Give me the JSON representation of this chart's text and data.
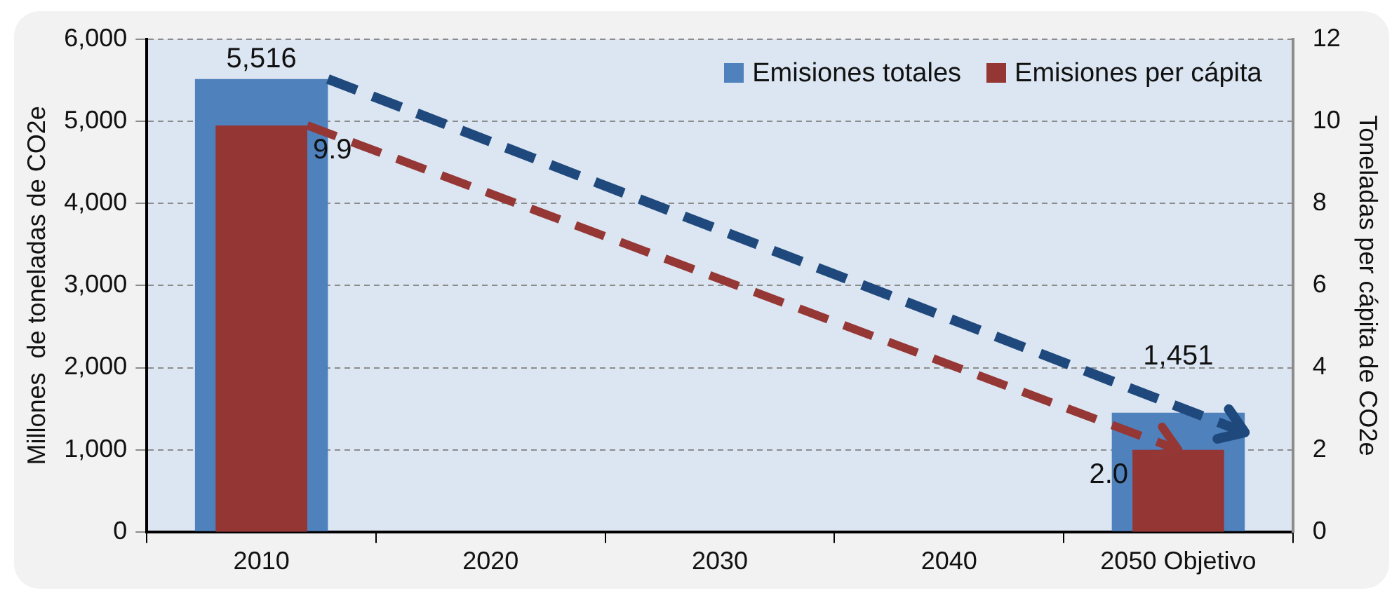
{
  "chart_data": {
    "type": "bar",
    "categories": [
      "2010",
      "2020",
      "2030",
      "2040",
      "2050 Objetivo"
    ],
    "ylabel": "Millones  de toneladas de CO2e",
    "y2label": "Toneladas per cápita de CO2e",
    "series": [
      {
        "name": "Emisiones totales",
        "color": "#4f81bd",
        "values": [
          5516,
          null,
          null,
          null,
          1451
        ],
        "value_labels": [
          "5,516",
          null,
          null,
          null,
          "1,451"
        ]
      },
      {
        "name": "Emisiones per cápita",
        "color": "#943634",
        "axis": "y2",
        "values": [
          9.9,
          null,
          null,
          null,
          2.0
        ],
        "value_labels": [
          "9.9",
          null,
          null,
          null,
          "2.0"
        ]
      }
    ],
    "ylim": [
      0,
      6000
    ],
    "yticks": [
      {
        "value": 0,
        "label": "0"
      },
      {
        "value": 1000,
        "label": "1,000"
      },
      {
        "value": 2000,
        "label": "2,000"
      },
      {
        "value": 3000,
        "label": "3,000"
      },
      {
        "value": 4000,
        "label": "4,000"
      },
      {
        "value": 5000,
        "label": "5,000"
      },
      {
        "value": 6000,
        "label": "6,000"
      }
    ],
    "y2lim": [
      0,
      12
    ],
    "y2ticks": [
      0,
      2,
      4,
      6,
      8,
      10,
      12
    ],
    "grid": "y",
    "legend": "top right"
  }
}
